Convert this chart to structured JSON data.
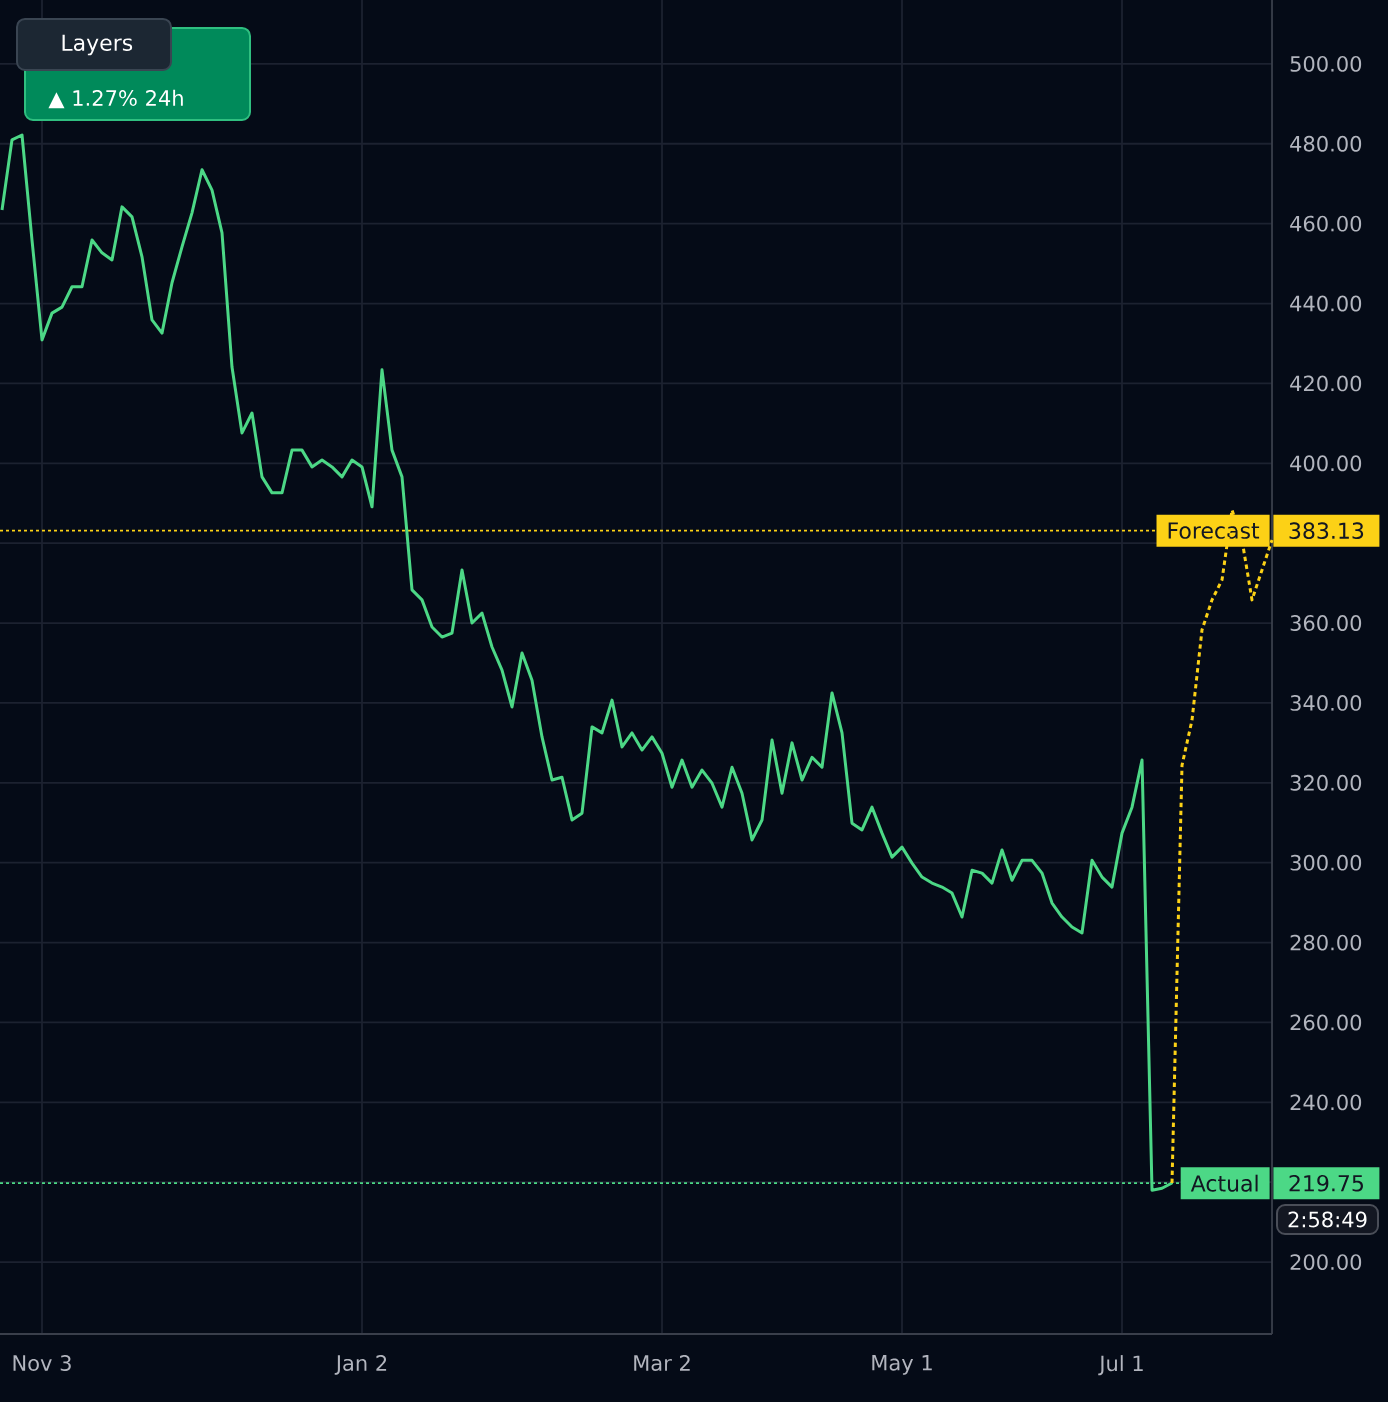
{
  "chart_data": {
    "type": "line",
    "categories": [
      null,
      null,
      null,
      null,
      "Nov 3",
      null,
      null,
      null,
      null,
      null,
      null,
      null,
      null,
      null,
      null,
      null,
      null,
      null,
      null,
      null,
      null,
      null,
      null,
      null,
      null,
      null,
      null,
      null,
      null,
      null,
      null,
      null,
      null,
      null,
      null,
      null,
      "Jan 2",
      null,
      null,
      null,
      null,
      null,
      null,
      null,
      null,
      null,
      null,
      null,
      null,
      null,
      null,
      null,
      null,
      null,
      null,
      null,
      null,
      null,
      null,
      null,
      null,
      null,
      null,
      null,
      null,
      null,
      "Mar 2",
      null,
      null,
      null,
      null,
      null,
      null,
      null,
      null,
      null,
      null,
      null,
      null,
      null,
      null,
      null,
      null,
      null,
      null,
      null,
      null,
      null,
      null,
      null,
      "May 1",
      null,
      null,
      null,
      null,
      null,
      null,
      null,
      null,
      null,
      null,
      null,
      null,
      null,
      null,
      null,
      null,
      null,
      null,
      null,
      null,
      null,
      "Jul 1",
      null,
      null,
      null,
      null,
      null,
      null,
      null,
      null,
      null,
      null,
      null,
      null,
      null,
      null,
      null
    ],
    "series": [
      {
        "color": "#4cd886",
        "line_style": "solid",
        "values": [
          463.4,
          481.0,
          482.2,
          455.9,
          430.9,
          437.6,
          439.1,
          444.2,
          444.2,
          455.9,
          452.7,
          450.9,
          464.2,
          461.7,
          451.7,
          435.9,
          432.6,
          445.2,
          454.2,
          462.7,
          473.5,
          468.4,
          457.7,
          424.1,
          407.6,
          412.6,
          396.6,
          392.6,
          392.6,
          403.3,
          403.3,
          399.1,
          400.8,
          399.1,
          396.6,
          400.8,
          399.1,
          389.1,
          423.4,
          403.3,
          396.6,
          368.3,
          365.8,
          359.0,
          356.5,
          357.5,
          373.3,
          360.0,
          362.5,
          354.0,
          348.2,
          339.0,
          352.5,
          345.7,
          331.5,
          320.7,
          321.4,
          310.7,
          312.4,
          334.0,
          332.5,
          340.7,
          329.0,
          332.5,
          328.2,
          331.5,
          327.4,
          318.9,
          325.7,
          318.9,
          323.2,
          319.9,
          313.9,
          323.9,
          317.4,
          305.7,
          310.7,
          330.7,
          317.4,
          330.0,
          320.7,
          326.4,
          323.9,
          342.5,
          332.5,
          309.9,
          308.2,
          313.9,
          307.4,
          301.4,
          303.9,
          299.9,
          296.4,
          294.9,
          293.9,
          292.4,
          286.4,
          298.1,
          297.4,
          294.9,
          303.2,
          295.6,
          300.6,
          300.6,
          297.4,
          289.9,
          286.4,
          283.9,
          282.4,
          300.6,
          296.4,
          293.9,
          307.4,
          313.9,
          325.7,
          218.0,
          218.5,
          219.8,
          null,
          null,
          null,
          null,
          null,
          null,
          null,
          null,
          null,
          null
        ]
      },
      {
        "color": "#fcd116",
        "line_style": "dotted",
        "values": [
          null,
          null,
          null,
          null,
          null,
          null,
          null,
          null,
          null,
          null,
          null,
          null,
          null,
          null,
          null,
          null,
          null,
          null,
          null,
          null,
          null,
          null,
          null,
          null,
          null,
          null,
          null,
          null,
          null,
          null,
          null,
          null,
          null,
          null,
          null,
          null,
          null,
          null,
          null,
          null,
          null,
          null,
          null,
          null,
          null,
          null,
          null,
          null,
          null,
          null,
          null,
          null,
          null,
          null,
          null,
          null,
          null,
          null,
          null,
          null,
          null,
          null,
          null,
          null,
          null,
          null,
          null,
          null,
          null,
          null,
          null,
          null,
          null,
          null,
          null,
          null,
          null,
          null,
          null,
          null,
          null,
          null,
          null,
          null,
          null,
          null,
          null,
          null,
          null,
          null,
          null,
          null,
          null,
          null,
          null,
          null,
          null,
          null,
          null,
          null,
          null,
          null,
          null,
          null,
          null,
          null,
          null,
          null,
          null,
          null,
          null,
          null,
          null,
          null,
          null,
          null,
          null,
          219.8,
          324.4,
          335.7,
          358.3,
          365.8,
          370.8,
          388.3,
          380.8,
          365.8,
          373.3,
          380.8
        ]
      }
    ],
    "ylim": [
      182,
      516
    ],
    "yticks": [
      {
        "value": 200,
        "label": "200.00"
      },
      {
        "value": 220,
        "label": null
      },
      {
        "value": 240,
        "label": "240.00"
      },
      {
        "value": 260,
        "label": "260.00"
      },
      {
        "value": 280,
        "label": "280.00"
      },
      {
        "value": 300,
        "label": "300.00"
      },
      {
        "value": 320,
        "label": "320.00"
      },
      {
        "value": 340,
        "label": "340.00"
      },
      {
        "value": 360,
        "label": "360.00"
      },
      {
        "value": 380,
        "label": null
      },
      {
        "value": 400,
        "label": "400.00"
      },
      {
        "value": 420,
        "label": "420.00"
      },
      {
        "value": 440,
        "label": "440.00"
      },
      {
        "value": 460,
        "label": "460.00"
      },
      {
        "value": 480,
        "label": "480.00"
      },
      {
        "value": 500,
        "label": "500.00"
      }
    ],
    "grid": true,
    "ref_lines": [
      {
        "axis": "y",
        "value": 383.13,
        "label": "Forecast",
        "color": "#fcd116",
        "line_style": "dotted"
      },
      {
        "axis": "y",
        "value": 219.75,
        "label": "Actual",
        "color": "#4cd886",
        "line_style": "dotted"
      }
    ],
    "annotations": [
      "Layers",
      "▲ 1.27% 24h",
      "2:58:49",
      "383.13",
      "219.75"
    ]
  }
}
